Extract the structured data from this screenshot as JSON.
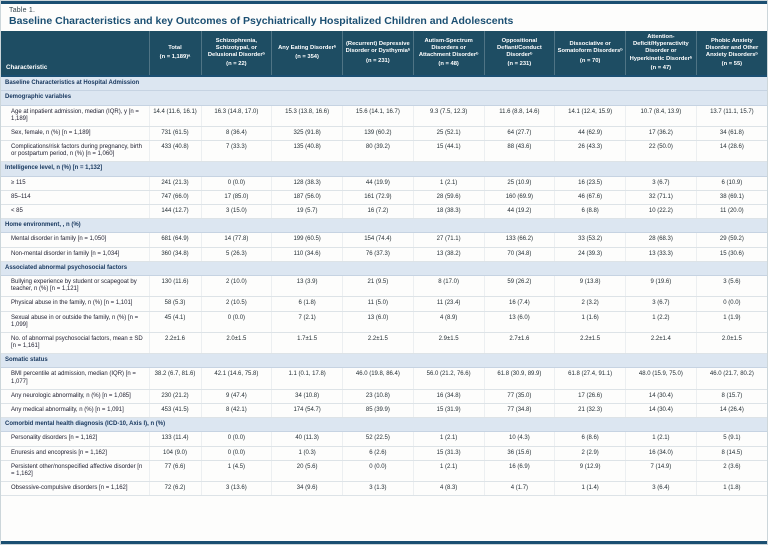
{
  "colors": {
    "header_bg": "#1e4d63",
    "section_bg": "#dce6f1",
    "title_color": "#1b4f72",
    "rule_color": "#1b4f72"
  },
  "caption": {
    "label": "Table 1.",
    "title": "Baseline Characteristics and key Outcomes of Psychiatrically Hospitalized Children and Adolescents"
  },
  "table": {
    "columns": [
      {
        "label": "Characteristic",
        "n": ""
      },
      {
        "label": "Total",
        "n": "(n = 1,189)ᵃ"
      },
      {
        "label": "Schizophrenia, Schizotypal, or Delusional Disorderᵇ",
        "n": "(n = 22)"
      },
      {
        "label": "Any Eating Disorderᵇ",
        "n": "(n = 354)"
      },
      {
        "label": "(Recurrent) Depressive Disorder or Dysthymiaᵇ",
        "n": "(n = 231)"
      },
      {
        "label": "Autism-Spectrum Disorders or Attachment Disorderᵇ",
        "n": "(n = 48)"
      },
      {
        "label": "Oppositional Defiant/Conduct Disorderᵇ",
        "n": "(n = 231)"
      },
      {
        "label": "Dissociative or Somatoform Disordersᵇ",
        "n": "(n = 70)"
      },
      {
        "label": "Attention-Deficit/Hyperactivity Disorder or Hyperkinetic Disorderᵇ",
        "n": "(n = 47)"
      },
      {
        "label": "Phobic Anxiety Disorder and Other Anxiety Disordersᵇ",
        "n": "(n = 55)"
      }
    ],
    "rows": [
      {
        "type": "section",
        "label": "Baseline Characteristics at Hospital Admission"
      },
      {
        "type": "section",
        "label": "Demographic variables"
      },
      {
        "type": "data",
        "label": "Age at inpatient admission, median (IQR), y [n = 1,189]",
        "values": [
          "14.4 (11.6, 16.1)",
          "16.3 (14.8, 17.0)",
          "15.3 (13.8, 16.6)",
          "15.6 (14.1, 16.7)",
          "9.3 (7.5, 12.3)",
          "11.6 (8.8, 14.6)",
          "14.1 (12.4, 15.9)",
          "10.7 (8.4, 13.9)",
          "13.7 (11.1, 15.7)"
        ]
      },
      {
        "type": "data",
        "label": "Sex, female, n (%) [n = 1,189]",
        "values": [
          "731 (61.5)",
          "8 (36.4)",
          "325 (91.8)",
          "139 (60.2)",
          "25 (52.1)",
          "64 (27.7)",
          "44 (62.9)",
          "17 (36.2)",
          "34 (61.8)"
        ]
      },
      {
        "type": "data",
        "label": "Complications/risk factors during pregnancy, birth or postpartum period, n (%) [n = 1,060]",
        "values": [
          "433 (40.8)",
          "7 (33.3)",
          "135 (40.8)",
          "80 (39.2)",
          "15 (44.1)",
          "88 (43.6)",
          "26 (43.3)",
          "22 (50.0)",
          "14 (28.6)"
        ]
      },
      {
        "type": "section",
        "label": "Intelligence level, n (%) [n = 1,132]"
      },
      {
        "type": "data",
        "label": "≥ 115",
        "values": [
          "241 (21.3)",
          "0 (0.0)",
          "128 (38.3)",
          "44 (19.9)",
          "1 (2.1)",
          "25 (10.9)",
          "16 (23.5)",
          "3 (6.7)",
          "6 (10.9)"
        ]
      },
      {
        "type": "data",
        "label": "85–114",
        "values": [
          "747 (66.0)",
          "17 (85.0)",
          "187 (56.0)",
          "161 (72.9)",
          "28 (59.6)",
          "160 (69.9)",
          "46 (67.6)",
          "32 (71.1)",
          "38 (69.1)"
        ]
      },
      {
        "type": "data",
        "label": "< 85",
        "values": [
          "144 (12.7)",
          "3 (15.0)",
          "19 (5.7)",
          "16 (7.2)",
          "18 (38.3)",
          "44 (19.2)",
          "6 (8.8)",
          "10 (22.2)",
          "11 (20.0)"
        ]
      },
      {
        "type": "section",
        "label": "Home environment, , n (%)"
      },
      {
        "type": "data",
        "label": "Mental disorder in family [n = 1,050]",
        "values": [
          "681 (64.9)",
          "14 (77.8)",
          "199 (60.5)",
          "154 (74.4)",
          "27 (71.1)",
          "133 (66.2)",
          "33 (53.2)",
          "28 (68.3)",
          "29 (59.2)"
        ]
      },
      {
        "type": "data",
        "label": "Non-mental disorder in family [n = 1,034]",
        "values": [
          "360 (34.8)",
          "5 (26.3)",
          "110 (34.6)",
          "76 (37.3)",
          "13 (38.2)",
          "70 (34.8)",
          "24 (39.3)",
          "13 (33.3)",
          "15 (30.6)"
        ]
      },
      {
        "type": "section",
        "label": "Associated abnormal psychosocial factors"
      },
      {
        "type": "data",
        "label": "Bullying experience by student or scapegoat by teacher, n (%) [n = 1,121]",
        "values": [
          "130 (11.6)",
          "2 (10.0)",
          "13 (3.9)",
          "21 (9.5)",
          "8 (17.0)",
          "59 (26.2)",
          "9 (13.8)",
          "9 (19.6)",
          "3 (5.6)"
        ]
      },
      {
        "type": "data",
        "label": "Physical abuse in the family, n (%) [n = 1,101]",
        "values": [
          "58 (5.3)",
          "2 (10.5)",
          "6 (1.8)",
          "11 (5.0)",
          "11 (23.4)",
          "16 (7.4)",
          "2 (3.2)",
          "3 (6.7)",
          "0 (0.0)"
        ]
      },
      {
        "type": "data",
        "label": "Sexual abuse in or outside the family, n (%) [n = 1,099]",
        "values": [
          "45 (4.1)",
          "0 (0.0)",
          "7 (2.1)",
          "13 (6.0)",
          "4 (8.9)",
          "13 (6.0)",
          "1 (1.6)",
          "1 (2.2)",
          "1 (1.9)"
        ]
      },
      {
        "type": "data",
        "label": "No. of abnormal psychosocial factors, mean ± SD [n = 1,161]",
        "values": [
          "2.2±1.6",
          "2.0±1.5",
          "1.7±1.5",
          "2.2±1.5",
          "2.9±1.5",
          "2.7±1.6",
          "2.2±1.5",
          "2.2±1.4",
          "2.0±1.5"
        ]
      },
      {
        "type": "section",
        "label": "Somatic status"
      },
      {
        "type": "data",
        "label": "BMI percentile at admission, median (IQR) [n = 1,077]",
        "values": [
          "38.2 (6.7, 81.6)",
          "42.1 (14.6, 75.8)",
          "1.1 (0.1, 17.8)",
          "46.0 (19.8, 86.4)",
          "56.0 (21.2, 76.6)",
          "61.8 (30.9, 89.9)",
          "61.8 (27.4, 91.1)",
          "48.0 (15.9, 75.0)",
          "46.0 (21.7, 80.2)"
        ]
      },
      {
        "type": "data",
        "label": "Any neurologic abnormality, n (%) [n = 1,085]",
        "values": [
          "230 (21.2)",
          "9 (47.4)",
          "34 (10.8)",
          "23 (10.8)",
          "16 (34.8)",
          "77 (35.0)",
          "17 (26.6)",
          "14 (30.4)",
          "8 (15.7)"
        ]
      },
      {
        "type": "data",
        "label": "Any medical abnormality, n (%) [n = 1,091]",
        "values": [
          "453 (41.5)",
          "8 (42.1)",
          "174 (54.7)",
          "85 (39.9)",
          "15 (31.9)",
          "77 (34.8)",
          "21 (32.3)",
          "14 (30.4)",
          "14 (26.4)"
        ]
      },
      {
        "type": "section",
        "label": "Comorbid mental health diagnosis (ICD-10, Axis I), n (%)"
      },
      {
        "type": "data",
        "label": "Personality disorders [n = 1,162]",
        "values": [
          "133 (11.4)",
          "0 (0.0)",
          "40 (11.3)",
          "52 (22.5)",
          "1 (2.1)",
          "10 (4.3)",
          "6 (8.6)",
          "1 (2.1)",
          "5 (9.1)"
        ]
      },
      {
        "type": "data",
        "label": "Enuresis and encopresis [n = 1,162]",
        "values": [
          "104 (9.0)",
          "0 (0.0)",
          "1 (0.3)",
          "6 (2.6)",
          "15 (31.3)",
          "36 (15.6)",
          "2 (2.9)",
          "16 (34.0)",
          "8 (14.5)"
        ]
      },
      {
        "type": "data",
        "label": "Persistent other/nonspecified affective disorder [n = 1,162]",
        "values": [
          "77 (6.6)",
          "1 (4.5)",
          "20 (5.6)",
          "0 (0.0)",
          "1 (2.1)",
          "16 (6.9)",
          "9 (12.9)",
          "7 (14.9)",
          "2 (3.6)"
        ]
      },
      {
        "type": "data",
        "label": "Obsessive-compulsive disorders [n = 1,162]",
        "values": [
          "72 (6.2)",
          "3 (13.6)",
          "34 (9.6)",
          "3 (1.3)",
          "4 (8.3)",
          "4 (1.7)",
          "1 (1.4)",
          "3 (6.4)",
          "1 (1.8)"
        ]
      }
    ]
  }
}
